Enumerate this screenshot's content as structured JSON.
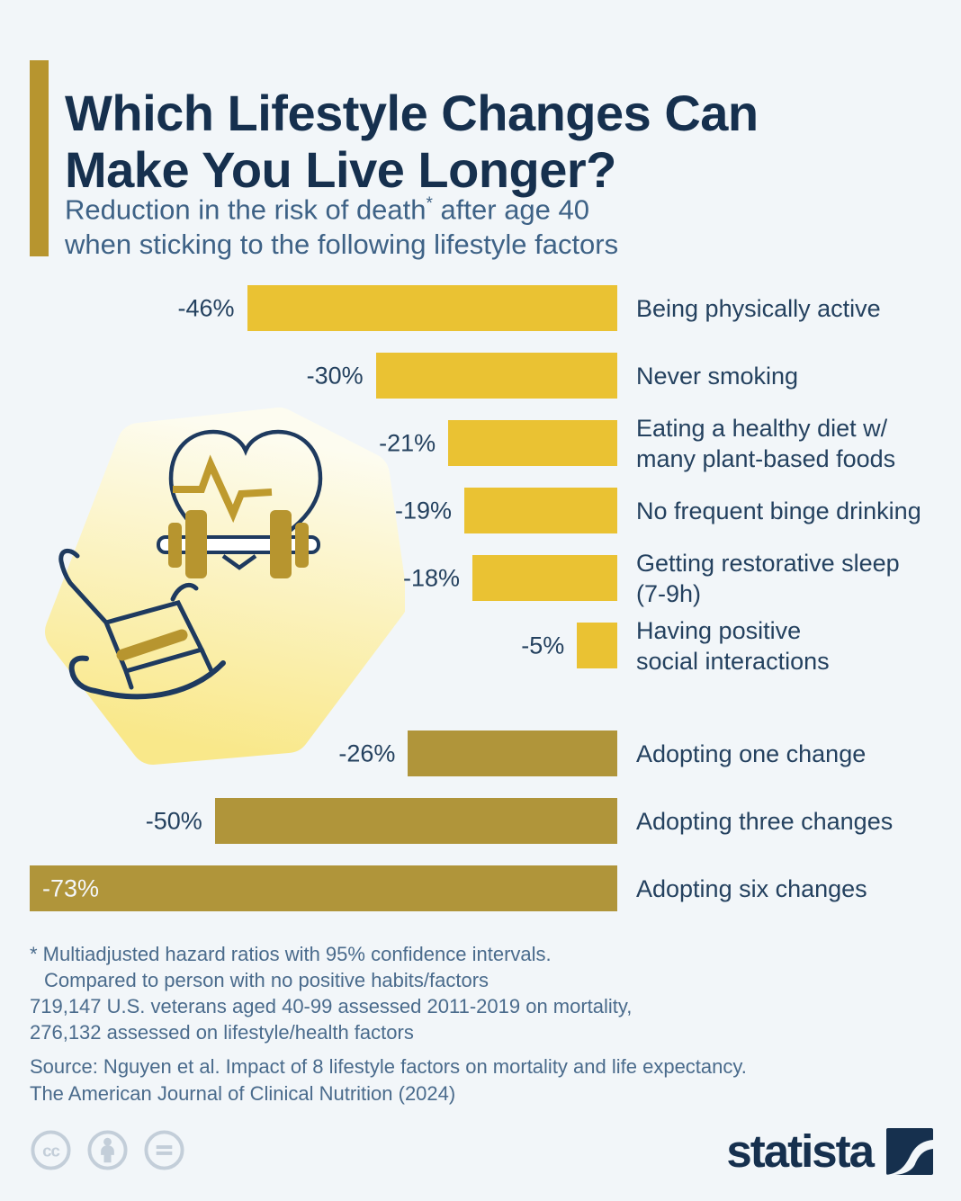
{
  "colors": {
    "background": "#f2f6f9",
    "accent_gold": "#b7952f",
    "bar_lifestyle": "#eac233",
    "bar_combined": "#b0953a",
    "title_navy": "#16304e",
    "subtitle_blue": "#3e6286",
    "label_navy": "#24415f",
    "note_slate": "#4a6b8c",
    "license_gray": "#c3ced9",
    "bar_label_inside": "#f4f7fa",
    "illustration_navy": "#1e3a5f",
    "illustration_gold": "#b7952f",
    "blob_top": "#fdfcf0",
    "blob_bottom": "#f9e88a"
  },
  "header": {
    "title": "Which Lifestyle Changes Can\nMake You Live Longer?",
    "subtitle_before_sup": "Reduction in the risk of death",
    "subtitle_sup": "*",
    "subtitle_after_sup": " after age 40",
    "subtitle_line2": "when sticking to the following lifestyle factors"
  },
  "chart_data": {
    "type": "bar",
    "orientation": "horizontal, right-aligned",
    "unit": "% reduction in risk of death after age 40",
    "value_axis_max": 73,
    "grid": false,
    "legend": false,
    "groups": [
      {
        "name": "individual lifestyle factor",
        "color": "#eac233"
      },
      {
        "name": "combined number of changes",
        "color": "#b0953a"
      }
    ],
    "series": [
      {
        "group": 0,
        "value": 46,
        "display": "-46%",
        "category": "Being physically active"
      },
      {
        "group": 0,
        "value": 30,
        "display": "-30%",
        "category": "Never smoking"
      },
      {
        "group": 0,
        "value": 21,
        "display": "-21%",
        "category": "Eating a healthy diet w/\nmany plant-based foods"
      },
      {
        "group": 0,
        "value": 19,
        "display": "-19%",
        "category": "No frequent binge drinking"
      },
      {
        "group": 0,
        "value": 18,
        "display": "-18%",
        "category": "Getting restorative sleep\n(7-9h)"
      },
      {
        "group": 0,
        "value": 5,
        "display": "-5%",
        "category": "Having positive\nsocial interactions"
      },
      {
        "group": 1,
        "value": 26,
        "display": "-26%",
        "category": "Adopting one change"
      },
      {
        "group": 1,
        "value": 50,
        "display": "-50%",
        "category": "Adopting three changes"
      },
      {
        "group": 1,
        "value": 73,
        "display": "-73%",
        "category": "Adopting six changes",
        "label_inside": true
      }
    ]
  },
  "footnotes": [
    {
      "text": "* Multiadjusted hazard ratios with 95% confidence intervals.",
      "indent": false
    },
    {
      "text": "Compared to person with no positive habits/factors",
      "indent": true
    },
    {
      "text": "719,147 U.S. veterans aged 40-99 assessed 2011-2019 on mortality,",
      "indent": false
    },
    {
      "text": "276,132 assessed on lifestyle/health factors",
      "indent": false
    }
  ],
  "source_lines": [
    "Source: Nguyen et al. Impact of 8 lifestyle factors on mortality and life expectancy.",
    "The American Journal of Clinical Nutrition (2024)"
  ],
  "footer": {
    "license_icons": [
      "cc-icon",
      "attribution-icon",
      "no-derivatives-icon"
    ],
    "brand_wordmark": "statista"
  }
}
